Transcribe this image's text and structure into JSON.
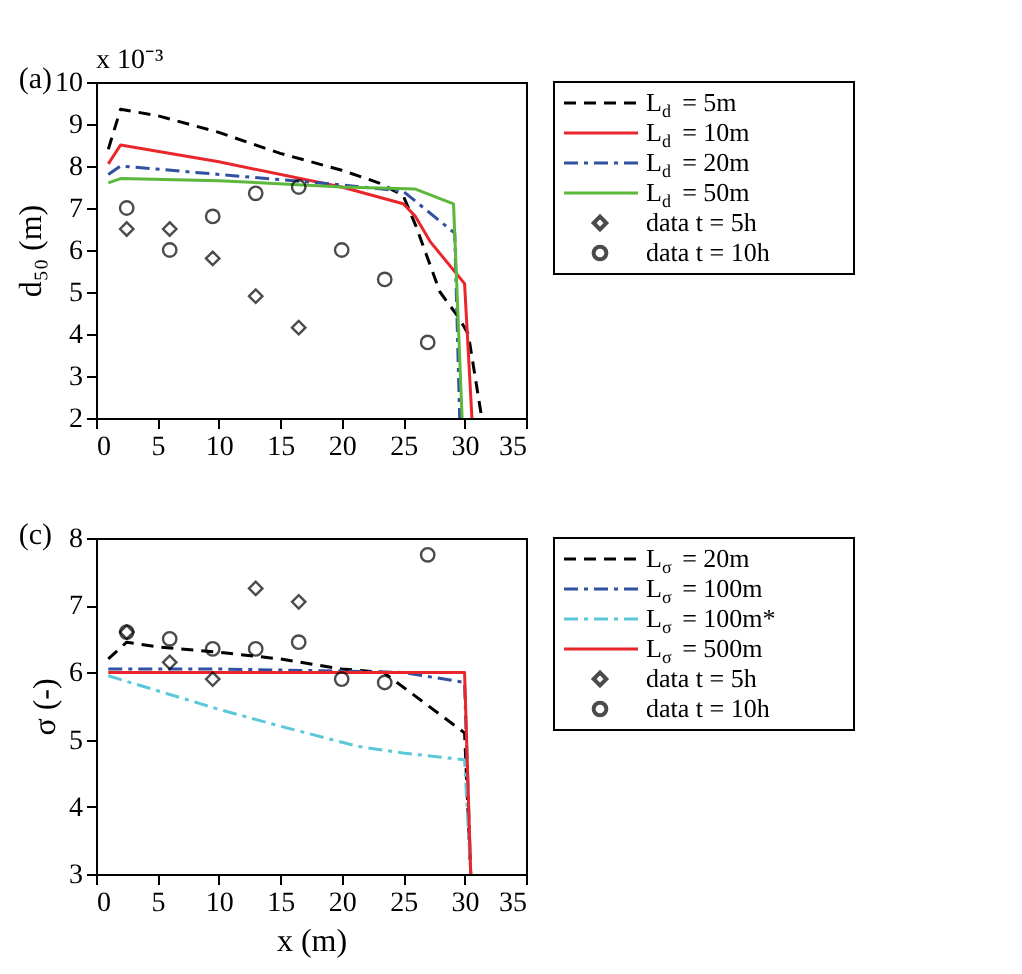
{
  "chart_data": [
    {
      "type": "line",
      "ylabel": "d₅₀ (m)",
      "annotations": [
        "(a)",
        "x 10⁻³"
      ],
      "xlim": [
        0,
        35
      ],
      "xticks": [
        0,
        5,
        10,
        15,
        20,
        25,
        30,
        35
      ],
      "ylim": [
        2,
        10
      ],
      "yticks": [
        2,
        3,
        4,
        5,
        6,
        7,
        8,
        9,
        10
      ],
      "grid": false,
      "legend": "top right",
      "series": [
        {
          "name": "L$_{d}$ = 5m",
          "type": "line",
          "line_style": "dashed",
          "marker": "none",
          "color": "#000000",
          "x": [
            1,
            2,
            5,
            10,
            15,
            20,
            23,
            25,
            26,
            28,
            29.5,
            30.3,
            31.4
          ],
          "values": [
            8.4,
            9.35,
            9.2,
            8.8,
            8.3,
            7.9,
            7.6,
            7.3,
            6.6,
            5.0,
            4.4,
            4.0,
            2.0
          ]
        },
        {
          "name": "L$_{d}$ = 10m",
          "type": "line",
          "line_style": "solid",
          "marker": "none",
          "color": "#e8262b",
          "x": [
            1,
            2,
            10,
            20,
            25,
            26,
            27.2,
            30,
            30.6
          ],
          "values": [
            8.05,
            8.5,
            8.1,
            7.5,
            7.1,
            6.8,
            6.2,
            5.2,
            2.0
          ]
        },
        {
          "name": "L$_{d}$ = 20m",
          "type": "line",
          "line_style": "dashdot",
          "marker": "none",
          "color": "#3050a0",
          "x": [
            1,
            2,
            10,
            20,
            25,
            29.2,
            29.6
          ],
          "values": [
            7.8,
            8.0,
            7.8,
            7.55,
            7.4,
            6.4,
            2.0
          ]
        },
        {
          "name": "L$_{d}$ = 50m",
          "type": "line",
          "line_style": "solid",
          "marker": "none",
          "color": "#5cb83a",
          "x": [
            1,
            2,
            10,
            20,
            26,
            29.1,
            29.8
          ],
          "values": [
            7.6,
            7.7,
            7.65,
            7.5,
            7.45,
            7.1,
            2.0
          ]
        },
        {
          "name": "data t = 5h",
          "type": "scatter",
          "marker": "diamond",
          "color": "#000000",
          "x": [
            2.5,
            6,
            9.5,
            13,
            16.5
          ],
          "values": [
            6.5,
            6.5,
            5.8,
            4.9,
            4.15
          ]
        },
        {
          "name": "data t = 10h",
          "type": "scatter",
          "marker": "circle",
          "color": "#000000",
          "x": [
            2.5,
            6,
            9.5,
            13,
            16.5,
            20,
            23.5,
            27
          ],
          "values": [
            7.0,
            6.0,
            6.8,
            7.35,
            7.5,
            6.0,
            5.3,
            3.8
          ]
        }
      ]
    },
    {
      "type": "line",
      "xlabel": "x (m)",
      "ylabel": "σ (-)",
      "annotations": [
        "(c)"
      ],
      "xlim": [
        0,
        35
      ],
      "xticks": [
        0,
        5,
        10,
        15,
        20,
        25,
        30,
        35
      ],
      "ylim": [
        3,
        8
      ],
      "yticks": [
        3,
        4,
        5,
        6,
        7,
        8
      ],
      "grid": false,
      "legend": "top right",
      "series": [
        {
          "name": "L$_{σ}$ = 20m",
          "type": "line",
          "line_style": "dashed",
          "marker": "none",
          "color": "#000000",
          "x": [
            1,
            2.5,
            5,
            10,
            15,
            20,
            23.4,
            30,
            30.5
          ],
          "values": [
            6.2,
            6.45,
            6.38,
            6.3,
            6.2,
            6.05,
            6.0,
            5.1,
            3.0
          ]
        },
        {
          "name": "L$_{σ}$ = 100m",
          "type": "line",
          "line_style": "dashdot",
          "marker": "none",
          "color": "#3050a0",
          "x": [
            1,
            10,
            20,
            25,
            30,
            30.5
          ],
          "values": [
            6.05,
            6.05,
            6.02,
            6.0,
            5.85,
            3.0
          ]
        },
        {
          "name": "L$_{σ}$ = 100m*",
          "type": "line",
          "line_style": "dashdot",
          "marker": "none",
          "color": "#5bc8d8",
          "x": [
            1,
            10,
            15,
            21.3,
            25,
            30,
            30.5
          ],
          "values": [
            5.95,
            5.45,
            5.2,
            4.9,
            4.8,
            4.7,
            3.0
          ]
        },
        {
          "name": "L$_{σ}$ = 500m",
          "type": "line",
          "line_style": "solid",
          "marker": "none",
          "color": "#e8262b",
          "x": [
            1,
            30,
            30.5
          ],
          "values": [
            6.0,
            6.0,
            3.0
          ]
        },
        {
          "name": "data t = 5h",
          "type": "scatter",
          "marker": "diamond",
          "color": "#000000",
          "x": [
            2.5,
            6,
            9.5,
            13,
            16.5
          ],
          "values": [
            6.6,
            6.15,
            5.9,
            7.25,
            7.05
          ]
        },
        {
          "name": "data t = 10h",
          "type": "scatter",
          "marker": "circle",
          "color": "#000000",
          "x": [
            2.5,
            6,
            9.5,
            13,
            16.5,
            20,
            23.5,
            27
          ],
          "values": [
            6.6,
            6.5,
            6.35,
            6.35,
            6.45,
            5.9,
            5.85,
            7.75
          ]
        }
      ]
    }
  ]
}
